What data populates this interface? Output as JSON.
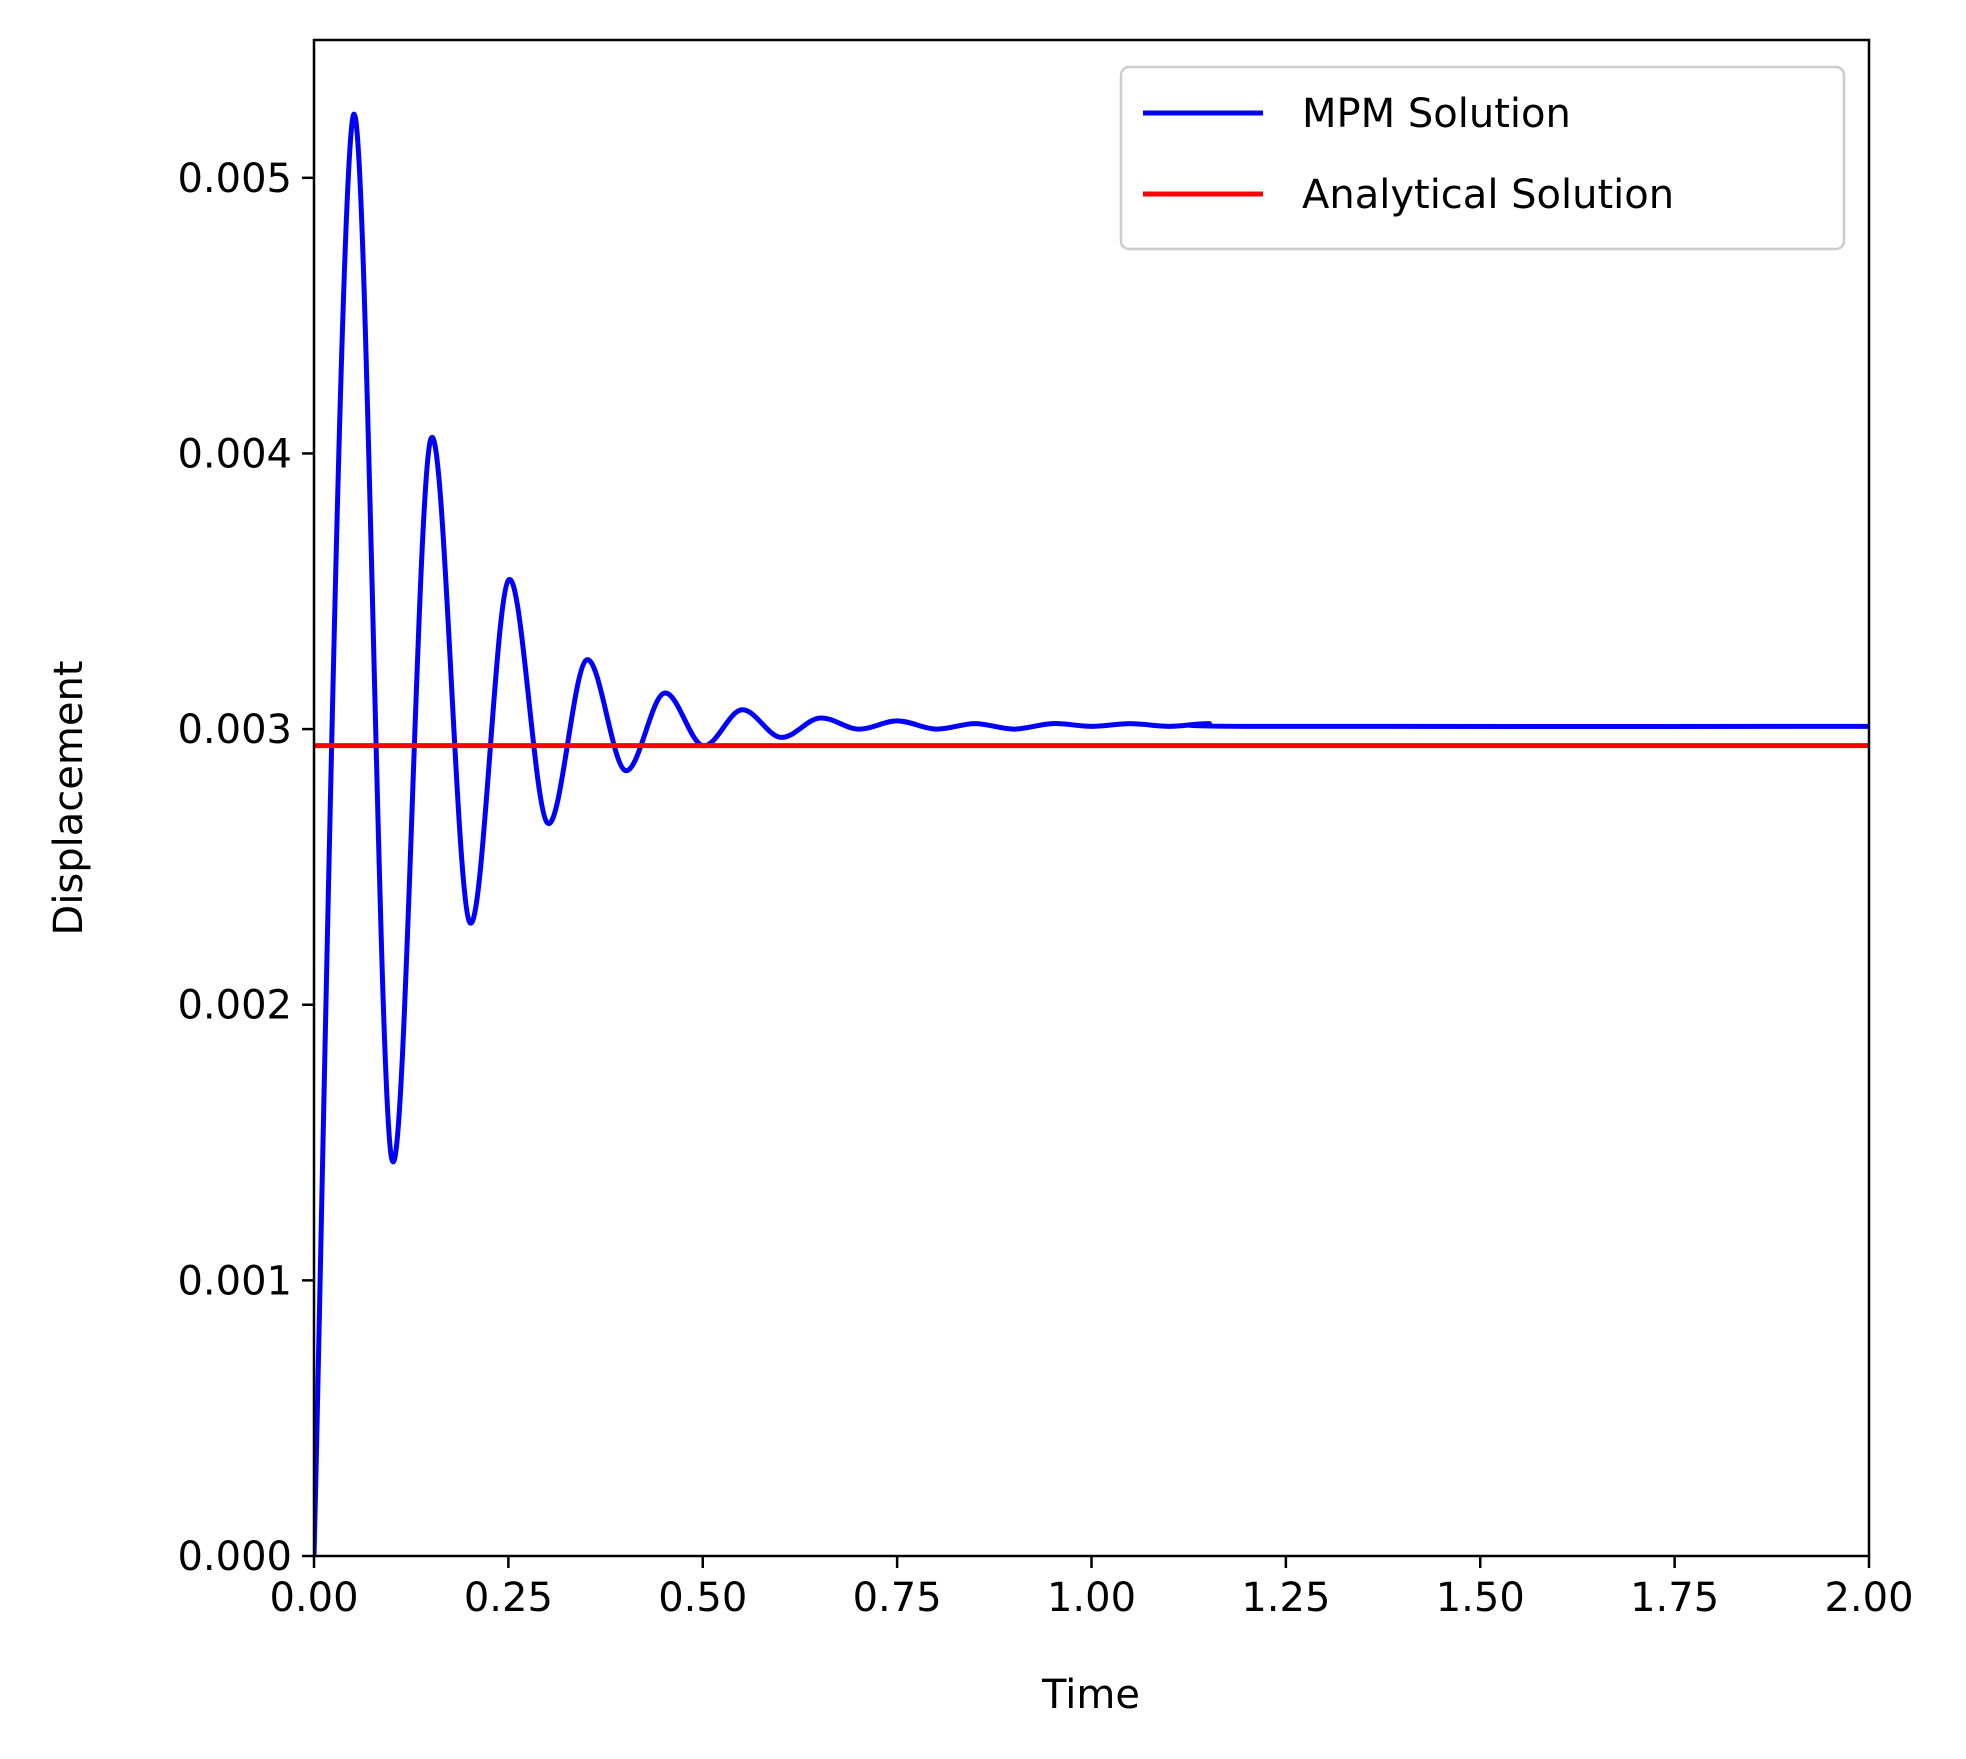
{
  "chart_data": {
    "type": "line",
    "xlabel": "Time",
    "ylabel": "Displacement",
    "xlim": [
      0,
      2
    ],
    "ylim": [
      0,
      0.0055
    ],
    "x_ticks": [
      0,
      0.25,
      0.5,
      0.75,
      1.0,
      1.25,
      1.5,
      1.75,
      2.0
    ],
    "x_tick_labels": [
      "0.00",
      "0.25",
      "0.50",
      "0.75",
      "1.00",
      "1.25",
      "1.50",
      "1.75",
      "2.00"
    ],
    "y_ticks": [
      0,
      0.001,
      0.002,
      0.003,
      0.004,
      0.005
    ],
    "y_tick_labels": [
      "0.000",
      "0.001",
      "0.002",
      "0.003",
      "0.004",
      "0.005"
    ],
    "grid": false,
    "legend_position": "top-right",
    "series": [
      {
        "name": "MPM Solution",
        "color": "#0000ff",
        "x": [
          0,
          0.05,
          0.1,
          0.15,
          0.2,
          0.25,
          0.3,
          0.35,
          0.4,
          0.45,
          0.5,
          0.55,
          0.6,
          0.65,
          0.7,
          0.75,
          0.8,
          0.85,
          0.9,
          0.95,
          1.0,
          1.05,
          1.1,
          1.15,
          1.2,
          2.0
        ],
        "y": [
          0,
          0.00522,
          0.00144,
          0.00405,
          0.0023,
          0.00354,
          0.00266,
          0.00325,
          0.00285,
          0.00313,
          0.00294,
          0.00307,
          0.00297,
          0.00304,
          0.003,
          0.00303,
          0.003,
          0.00302,
          0.003,
          0.00302,
          0.00301,
          0.00302,
          0.00301,
          0.00302,
          0.00301,
          0.00301
        ]
      },
      {
        "name": "Analytical Solution",
        "color": "#ff0000",
        "x": [
          0,
          2
        ],
        "y": [
          0.00294,
          0.00294
        ]
      }
    ]
  }
}
